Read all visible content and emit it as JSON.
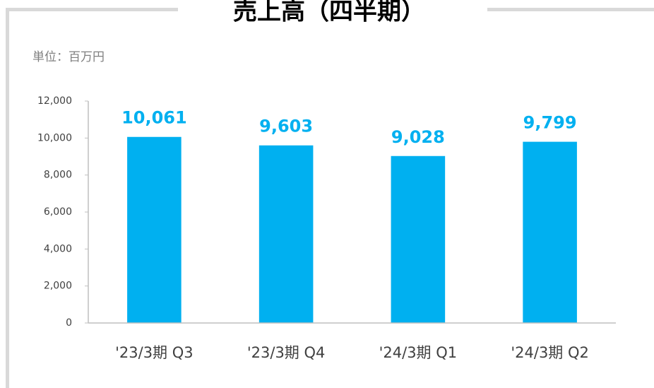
{
  "chart_data": {
    "type": "bar",
    "title": "売上高（四半期）",
    "unit": "単位：百万円",
    "categories": [
      "'23/3期 Q3",
      "'23/3期 Q4",
      "'24/3期 Q1",
      "'24/3期 Q2"
    ],
    "values": [
      10061,
      9603,
      9028,
      9799
    ],
    "value_labels": [
      "10,061",
      "9,603",
      "9,028",
      "9,799"
    ],
    "color": "#00b0f0",
    "ylim": [
      0,
      12000
    ],
    "yticks": [
      0,
      {
        "value": 2000,
        "label": "2,000"
      },
      {
        "value": 4000,
        "label": "4,000"
      },
      {
        "value": 6000,
        "label": "6,000"
      },
      {
        "value": 8000,
        "label": "8,000"
      },
      {
        "value": 10000,
        "label": "10,000"
      },
      {
        "value": 12000,
        "label": "12,000"
      }
    ],
    "grid": false
  }
}
